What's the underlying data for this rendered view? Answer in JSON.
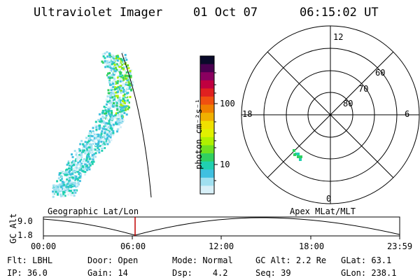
{
  "header": {
    "instrument": "Ultraviolet Imager",
    "date": "01 Oct 07",
    "time": "06:15:02 UT"
  },
  "colorbar": {
    "unit_label": "photon cm⁻²s⁻¹",
    "ticks": [
      "100",
      "10"
    ],
    "colors": [
      "#0a0a2a",
      "#4a0050",
      "#8a0060",
      "#c00040",
      "#e02020",
      "#f05010",
      "#f08000",
      "#f0b000",
      "#f0e000",
      "#e0f000",
      "#b0f000",
      "#70e020",
      "#30d060",
      "#20d0b0",
      "#40c0e0",
      "#a0e0f0",
      "#d8f0f8"
    ]
  },
  "polar_plot": {
    "mlt_labels": [
      "12",
      "18",
      "6",
      "0"
    ],
    "lat_labels": [
      "60",
      "70",
      "80"
    ]
  },
  "timeline": {
    "left_title": "Geographic Lat/Lon",
    "right_title": "Apex MLat/MLT",
    "axis_label": "GC Alt",
    "y_ticks": [
      "9.0",
      "1.8"
    ],
    "x_ticks": [
      "00:00",
      "06:00",
      "12:00",
      "18:00",
      "23:59"
    ],
    "marker_color": "#c00000"
  },
  "status": {
    "row1": [
      {
        "label": "Flt:",
        "value": "LBHL"
      },
      {
        "label": "Door:",
        "value": "Open"
      },
      {
        "label": "Mode:",
        "value": "Normal"
      },
      {
        "label": "GC Alt:",
        "value": "2.2 Re"
      },
      {
        "label": "GLat:",
        "value": "63.1"
      }
    ],
    "row2": [
      {
        "label": "IP:",
        "value": "36.0"
      },
      {
        "label": "Gain:",
        "value": "14"
      },
      {
        "label": "Dsp:",
        "value": "4.2"
      },
      {
        "label": "Seq:",
        "value": "39"
      },
      {
        "label": "GLon:",
        "value": "238.1"
      }
    ]
  }
}
